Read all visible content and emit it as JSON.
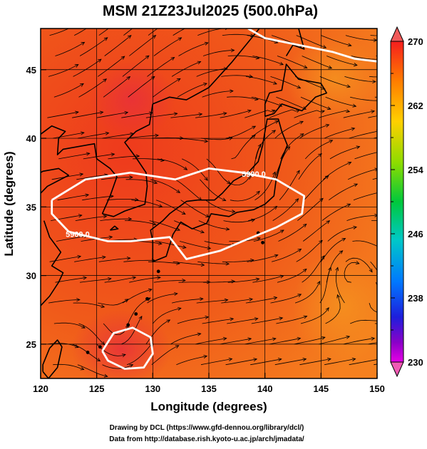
{
  "title": "MSM 21Z23Jul2025 (500.0hPa)",
  "map": {
    "lon_range": [
      120,
      150
    ],
    "lat_range": [
      22.5,
      48
    ],
    "x_label": "Longitude (degrees)",
    "y_label": "Latitude  (degrees)",
    "x_ticks": [
      "120",
      "125",
      "130",
      "135",
      "140",
      "145",
      "150"
    ],
    "y_ticks": [
      "25",
      "30",
      "35",
      "40",
      "45"
    ],
    "field_colors": {
      "warm": "#ee3a1c",
      "mid": "#f05a1a",
      "cool": "#f5801e"
    },
    "contours": [
      {
        "label": "5900",
        "lon_lat": [
          [
            121,
            35.5
          ],
          [
            124,
            37
          ],
          [
            128,
            37.5
          ],
          [
            132,
            37
          ],
          [
            135,
            37.8
          ],
          [
            138,
            37.5
          ],
          [
            141,
            37
          ],
          [
            143.5,
            35.8
          ],
          [
            143.3,
            34.5
          ],
          [
            141,
            33.5
          ],
          [
            138,
            32.5
          ],
          [
            136,
            31.8
          ],
          [
            133,
            31.2
          ],
          [
            131.5,
            32.8
          ],
          [
            128,
            32.5
          ],
          [
            126,
            32.5
          ],
          [
            122.5,
            33.2
          ],
          [
            121,
            34.5
          ],
          [
            121,
            35.5
          ]
        ]
      },
      {
        "label": "5900",
        "lon_lat": [
          [
            125.5,
            24.5
          ],
          [
            126.5,
            25.8
          ],
          [
            128.2,
            26.2
          ],
          [
            129.8,
            25.5
          ],
          [
            130,
            24.3
          ],
          [
            129.2,
            23.3
          ],
          [
            127.5,
            23.2
          ],
          [
            126,
            23.8
          ],
          [
            125.5,
            24.5
          ]
        ]
      },
      {
        "label": "",
        "lon_lat": [
          [
            138.5,
            48
          ],
          [
            140,
            47.3
          ],
          [
            143,
            46.8
          ],
          [
            146,
            46.3
          ],
          [
            148,
            45.8
          ],
          [
            150,
            45.6
          ]
        ]
      }
    ],
    "contour_labels": [
      {
        "text": "5900.0",
        "lon": 139,
        "lat": 37.2
      },
      {
        "text": "5900.0",
        "lon": 123.3,
        "lat": 32.8
      }
    ]
  },
  "colorbar": {
    "ticks": [
      "270",
      "262",
      "254",
      "246",
      "238",
      "230"
    ],
    "colors": [
      "#f51e1e",
      "#ff7a00",
      "#ffd000",
      "#8cdc00",
      "#00c83c",
      "#00c8c8",
      "#0078ff",
      "#1e1edc",
      "#8c00c8",
      "#e600e6"
    ]
  },
  "credits": {
    "line1": "Drawing by DCL (https://www.gfd-dennou.org/library/dcl/)",
    "line2": "Data from http://database.rish.kyoto-u.ac.jp/arch/jmadata/"
  }
}
